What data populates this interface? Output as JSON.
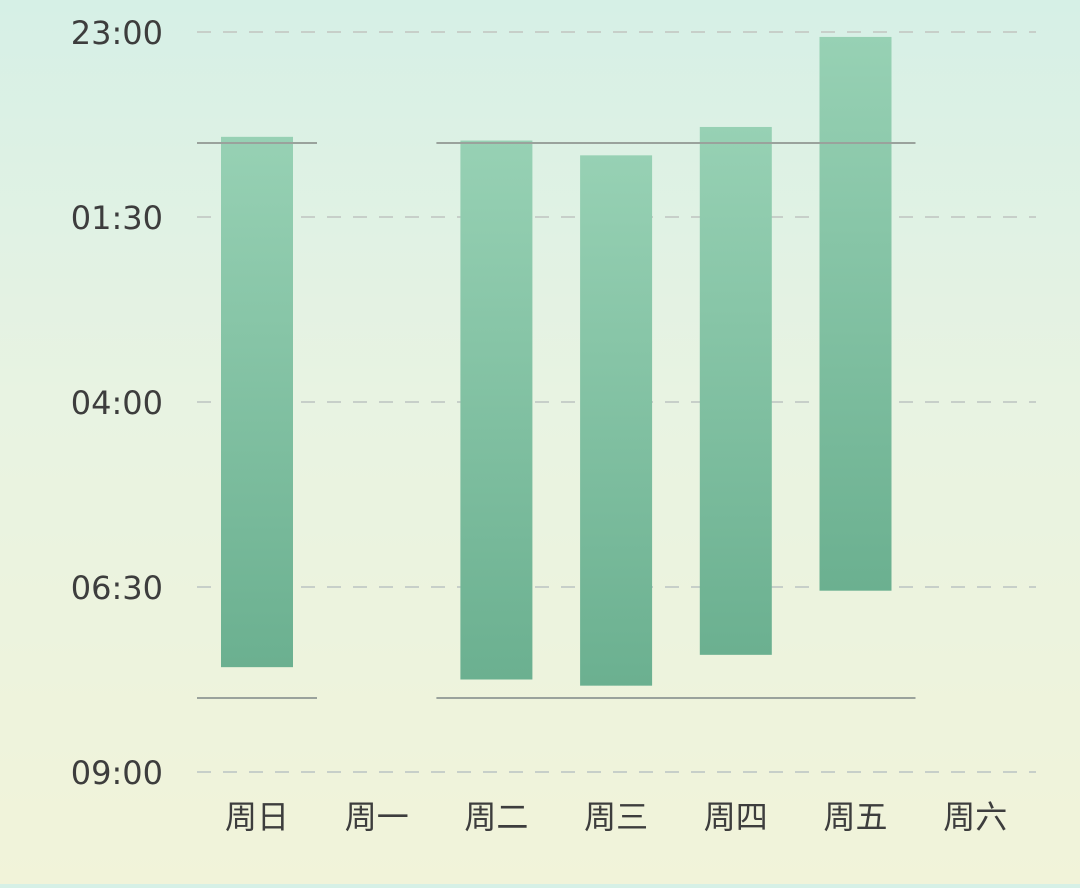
{
  "chart_data": {
    "type": "bar",
    "subtype": "floating-range",
    "title": "",
    "xlabel": "",
    "ylabel": "",
    "y_axis": {
      "ticks": [
        "23:00",
        "01:30",
        "04:00",
        "06:30",
        "09:00"
      ],
      "tick_values_hours_after_2300": [
        0,
        2.5,
        5,
        7.5,
        10
      ],
      "range": [
        0,
        10
      ],
      "inverted": true,
      "grid": "dashed"
    },
    "categories": [
      "周日",
      "周一",
      "周二",
      "周三",
      "周四",
      "周五",
      "周六"
    ],
    "series": [
      {
        "bars": [
          {
            "category": "周日",
            "start": "00:25",
            "end": "07:35"
          },
          {
            "category": "周一",
            "start": null,
            "end": null
          },
          {
            "category": "周二",
            "start": "00:28",
            "end": "07:45"
          },
          {
            "category": "周三",
            "start": "00:40",
            "end": "07:50"
          },
          {
            "category": "周四",
            "start": "00:17",
            "end": "07:25"
          },
          {
            "category": "周五",
            "start": "23:04",
            "end": "06:33"
          },
          {
            "category": "周六",
            "start": null,
            "end": null
          }
        ]
      }
    ],
    "reference_lines": [
      {
        "value": "00:30",
        "segments": [
          [
            "周日",
            "周日"
          ],
          [
            "周二",
            "周五"
          ]
        ]
      },
      {
        "value": "08:00",
        "segments": [
          [
            "周日",
            "周日"
          ],
          [
            "周二",
            "周五"
          ]
        ]
      }
    ],
    "colors": {
      "bar_top": "#97d1b4",
      "bar_bottom": "#6bb090",
      "reference_line": "#9aa29c",
      "grid": "#c7cfc9",
      "label": "#3d3d3d"
    }
  }
}
